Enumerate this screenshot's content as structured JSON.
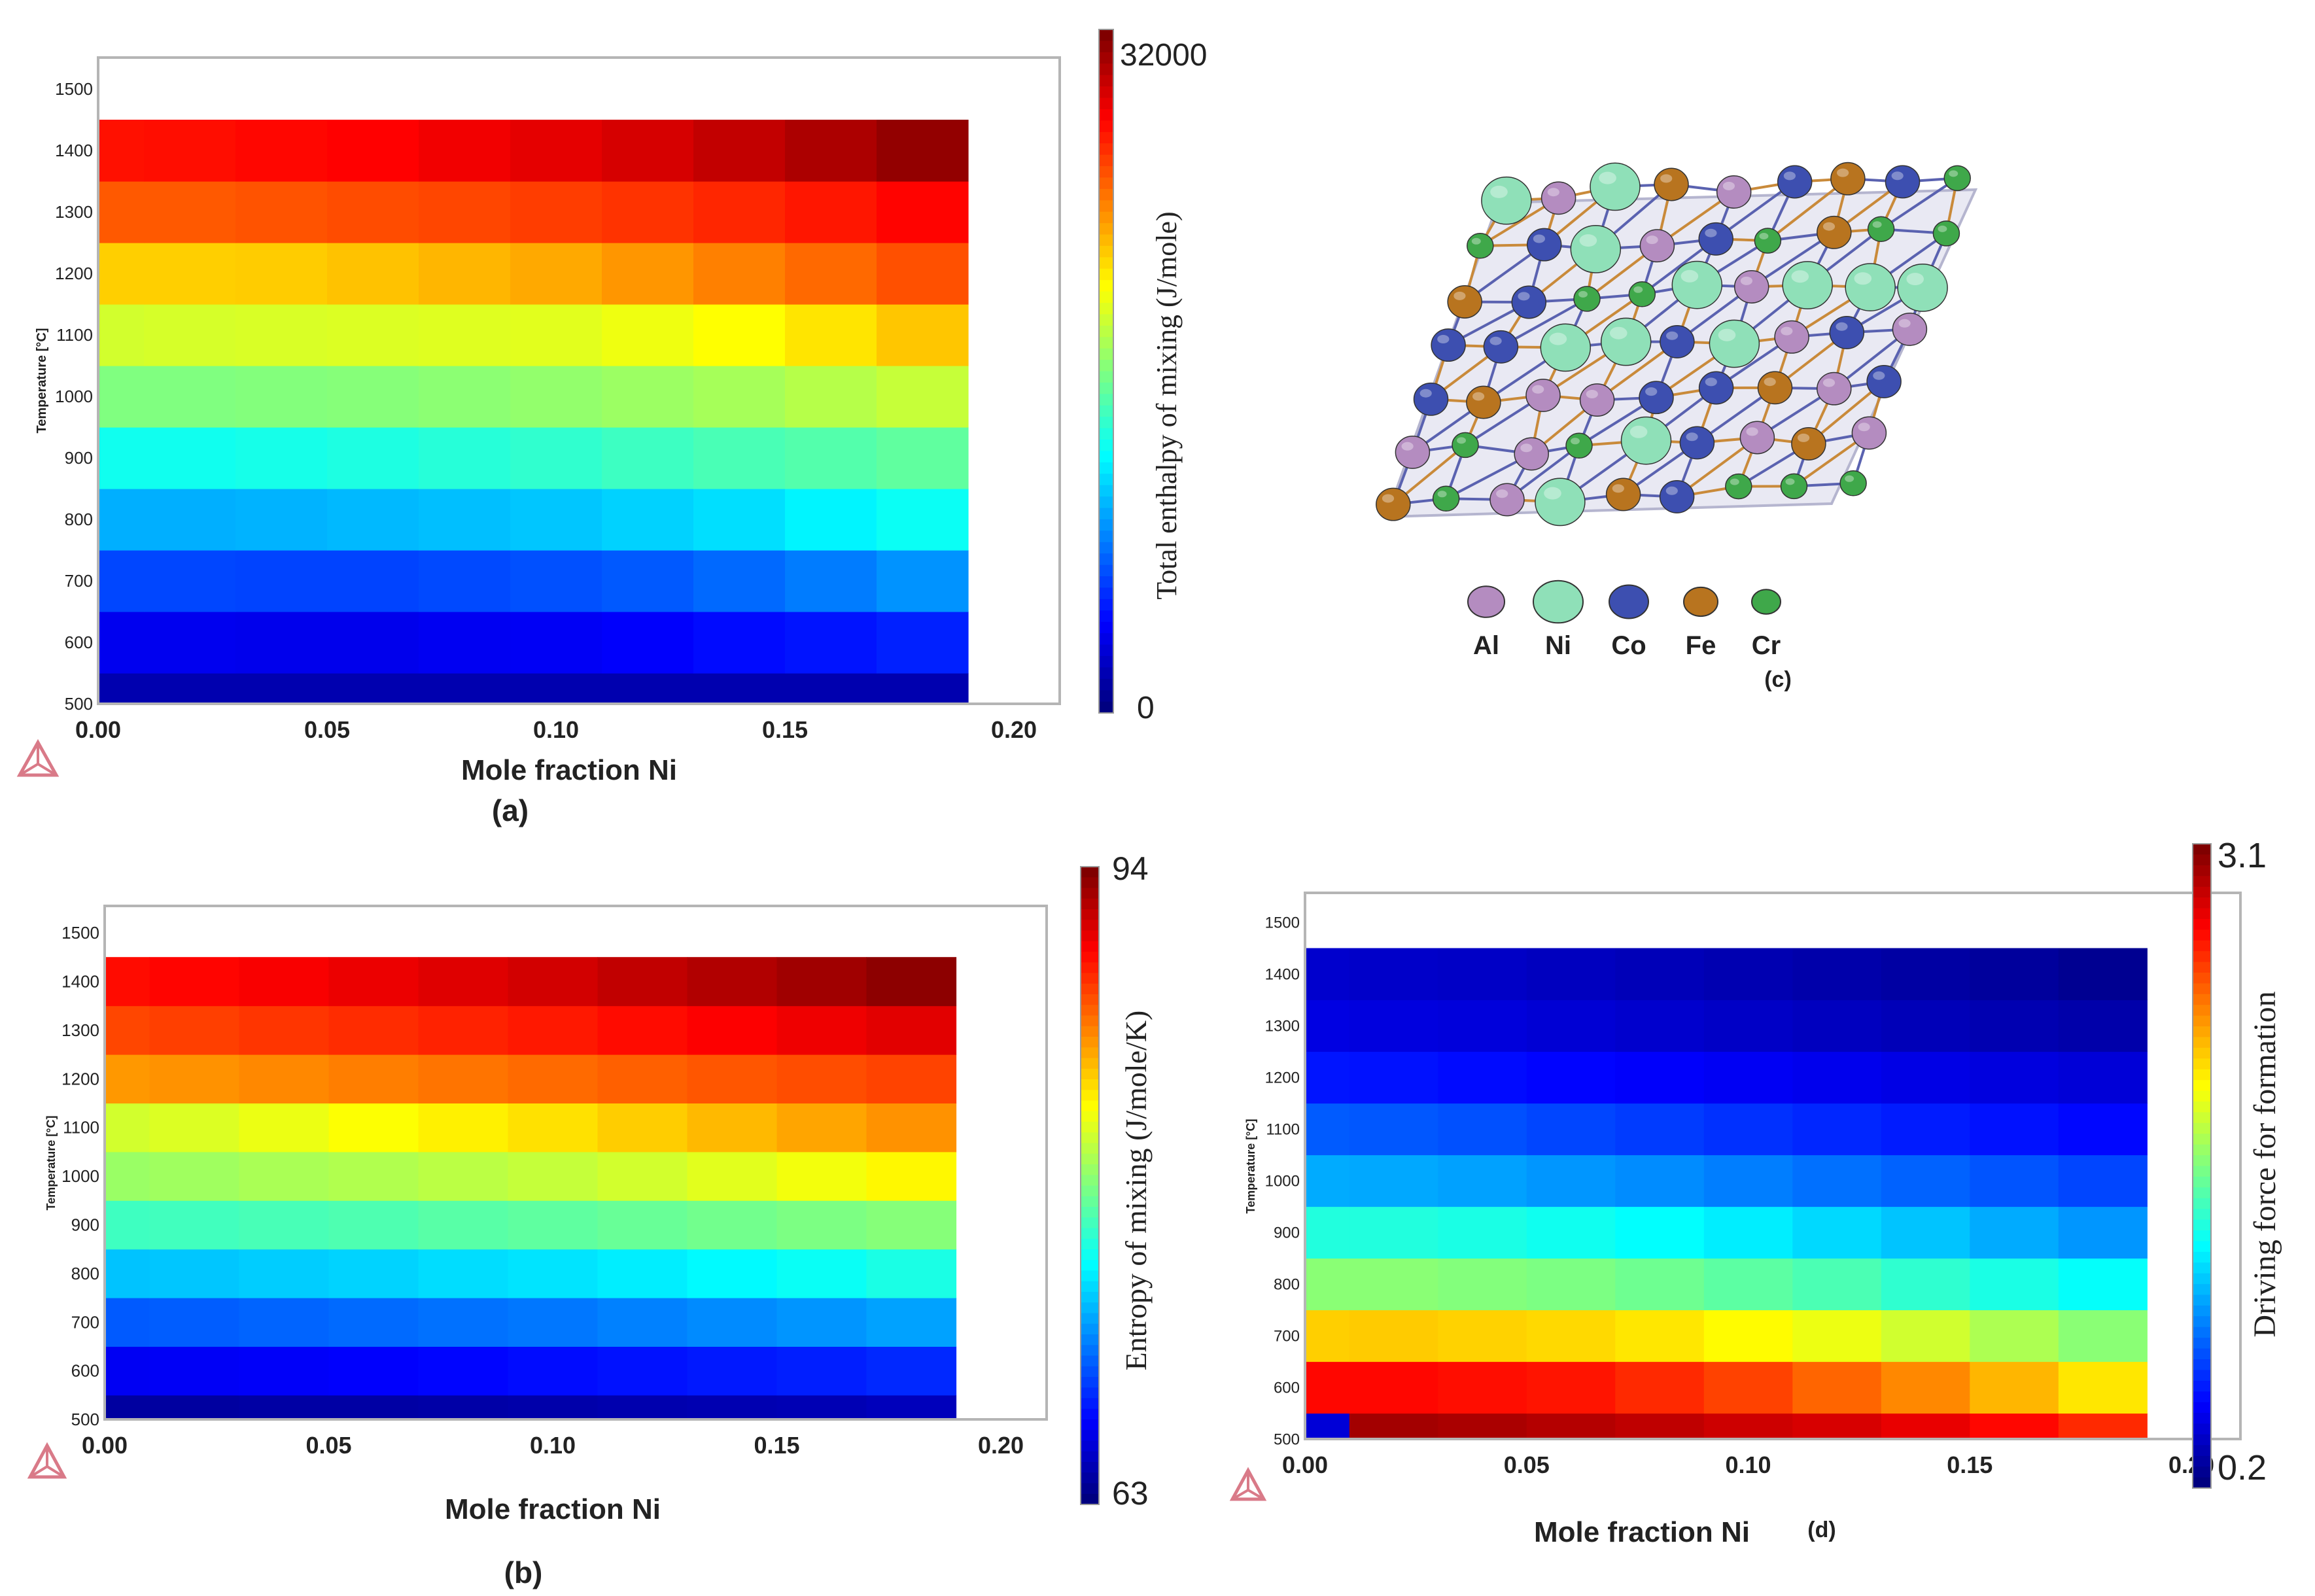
{
  "chart_data": [
    {
      "type": "heatmap",
      "panel_label": "(a)",
      "xlabel": "Mole fraction Ni",
      "ylabel": "Temperature [°C]",
      "x_ticks": [
        "0.00",
        "0.05",
        "0.10",
        "0.15",
        "0.20"
      ],
      "y_ticks": [
        "500",
        "600",
        "700",
        "800",
        "900",
        "1000",
        "1100",
        "1200",
        "1300",
        "1400",
        "1500"
      ],
      "xlim": [
        0,
        0.2
      ],
      "ylim": [
        500,
        1500
      ],
      "x_bin_centers": [
        0.0,
        0.02,
        0.04,
        0.06,
        0.08,
        0.1,
        0.12,
        0.14,
        0.16,
        0.18
      ],
      "y_bin_centers": [
        500,
        600,
        700,
        800,
        900,
        1000,
        1100,
        1200,
        1300,
        1400
      ],
      "colorbar_label": "Total enthalpy of mixing (J/mole)",
      "colorbar_min_label": "0",
      "colorbar_max_label": "32000",
      "range": [
        0,
        32000
      ],
      "values": [
        [
          1500,
          1500,
          1500,
          1500,
          1500,
          1500,
          1500,
          1500,
          1500,
          1500
        ],
        [
          3500,
          3500,
          3400,
          3400,
          3600,
          3700,
          3900,
          4300,
          4600,
          5000
        ],
        [
          6200,
          6200,
          6100,
          6100,
          6300,
          6500,
          6800,
          7300,
          7900,
          8600
        ],
        [
          9500,
          9500,
          9600,
          9800,
          10000,
          10200,
          10600,
          11000,
          11700,
          12300
        ],
        [
          12500,
          12500,
          12700,
          12900,
          13200,
          13500,
          13900,
          14300,
          14600,
          15000
        ],
        [
          16000,
          16000,
          16100,
          16200,
          16400,
          16600,
          16900,
          17200,
          17700,
          18200
        ],
        [
          18600,
          18700,
          18800,
          18900,
          19000,
          19100,
          19500,
          20000,
          20800,
          21800
        ],
        [
          21500,
          21500,
          21600,
          21900,
          22300,
          22700,
          23300,
          24000,
          24700,
          25500
        ],
        [
          25200,
          25200,
          25400,
          25600,
          25800,
          26100,
          26400,
          26800,
          27300,
          27900
        ],
        [
          27500,
          27600,
          27800,
          28000,
          28400,
          28800,
          29300,
          29900,
          30600,
          31400
        ]
      ]
    },
    {
      "type": "heatmap",
      "panel_label": "(b)",
      "xlabel": "Mole fraction Ni",
      "ylabel": "Temperature [°C]",
      "x_ticks": [
        "0.00",
        "0.05",
        "0.10",
        "0.15",
        "0.20"
      ],
      "y_ticks": [
        "500",
        "600",
        "700",
        "800",
        "900",
        "1000",
        "1100",
        "1200",
        "1300",
        "1400",
        "1500"
      ],
      "xlim": [
        0,
        0.2
      ],
      "ylim": [
        500,
        1500
      ],
      "x_bin_centers": [
        0.0,
        0.02,
        0.04,
        0.06,
        0.08,
        0.1,
        0.12,
        0.14,
        0.16,
        0.18
      ],
      "y_bin_centers": [
        500,
        600,
        700,
        800,
        900,
        1000,
        1100,
        1200,
        1300,
        1400
      ],
      "colorbar_label": "Entropy of mixing (J/mole/K)",
      "colorbar_min_label": "63",
      "colorbar_max_label": "94",
      "range": [
        63,
        94
      ],
      "values": [
        [
          64.0,
          64.0,
          64.1,
          64.1,
          64.2,
          64.3,
          64.4,
          64.5,
          64.6,
          64.8
        ],
        [
          66.5,
          66.6,
          66.7,
          66.8,
          67.0,
          67.2,
          67.4,
          67.6,
          67.8,
          68.1
        ],
        [
          69.6,
          69.7,
          69.9,
          70.1,
          70.3,
          70.5,
          70.8,
          71.1,
          71.4,
          71.8
        ],
        [
          72.8,
          72.9,
          73.1,
          73.3,
          73.6,
          73.8,
          74.1,
          74.5,
          74.9,
          75.4
        ],
        [
          76.5,
          76.6,
          76.8,
          77.0,
          77.3,
          77.5,
          77.8,
          78.1,
          78.4,
          78.7
        ],
        [
          79.3,
          79.5,
          79.8,
          80.0,
          80.3,
          80.6,
          81.0,
          81.5,
          82.0,
          82.6
        ],
        [
          81.0,
          81.3,
          81.8,
          82.3,
          82.8,
          83.3,
          83.9,
          84.5,
          85.1,
          85.7
        ],
        [
          85.5,
          85.7,
          86.0,
          86.3,
          86.6,
          86.9,
          87.2,
          87.5,
          87.8,
          88.1
        ],
        [
          88.0,
          88.2,
          88.5,
          88.8,
          89.1,
          89.4,
          89.8,
          90.2,
          90.6,
          91.0
        ],
        [
          89.8,
          90.0,
          90.3,
          90.7,
          91.1,
          91.5,
          92.0,
          92.5,
          93.0,
          93.6
        ]
      ]
    },
    {
      "type": "heatmap",
      "panel_label": "(d)",
      "xlabel": "Mole fraction Ni",
      "ylabel": "Temperature [°C]",
      "x_ticks": [
        "0.00",
        "0.05",
        "0.10",
        "0.15",
        "0.20"
      ],
      "y_ticks": [
        "500",
        "600",
        "700",
        "800",
        "900",
        "1000",
        "1100",
        "1200",
        "1300",
        "1400",
        "1500"
      ],
      "xlim": [
        0,
        0.2
      ],
      "ylim": [
        500,
        1500
      ],
      "x_bin_centers": [
        0.0,
        0.02,
        0.04,
        0.06,
        0.08,
        0.1,
        0.12,
        0.14,
        0.16,
        0.18
      ],
      "y_bin_centers": [
        500,
        600,
        700,
        800,
        900,
        1000,
        1100,
        1200,
        1300,
        1400
      ],
      "colorbar_label": "Driving force for formation",
      "colorbar_min_label": "0.2",
      "colorbar_max_label": "3.1",
      "range": [
        0.2,
        3.1
      ],
      "values": [
        [
          0.45,
          3.0,
          2.98,
          2.95,
          2.92,
          2.88,
          2.85,
          2.8,
          2.72,
          2.62
        ],
        [
          2.72,
          2.72,
          2.7,
          2.68,
          2.62,
          2.55,
          2.45,
          2.35,
          2.22,
          2.08
        ],
        [
          2.15,
          2.16,
          2.14,
          2.12,
          2.08,
          2.02,
          1.96,
          1.88,
          1.78,
          1.68
        ],
        [
          1.68,
          1.68,
          1.66,
          1.64,
          1.6,
          1.55,
          1.5,
          1.42,
          1.36,
          1.3
        ],
        [
          1.38,
          1.38,
          1.36,
          1.33,
          1.29,
          1.24,
          1.18,
          1.12,
          1.05,
          0.99
        ],
        [
          1.05,
          1.04,
          1.02,
          0.99,
          0.96,
          0.92,
          0.88,
          0.84,
          0.8,
          0.76
        ],
        [
          0.82,
          0.81,
          0.79,
          0.76,
          0.73,
          0.7,
          0.67,
          0.64,
          0.61,
          0.58
        ],
        [
          0.62,
          0.61,
          0.59,
          0.57,
          0.55,
          0.53,
          0.51,
          0.49,
          0.47,
          0.45
        ],
        [
          0.48,
          0.47,
          0.46,
          0.44,
          0.42,
          0.4,
          0.38,
          0.36,
          0.34,
          0.32
        ],
        [
          0.42,
          0.41,
          0.4,
          0.38,
          0.36,
          0.34,
          0.32,
          0.3,
          0.28,
          0.25
        ]
      ]
    }
  ],
  "panel_c": {
    "label": "(c)",
    "legend": [
      {
        "name": "Al",
        "color": "#b48cc0"
      },
      {
        "name": "Ni",
        "color": "#8fe0b8"
      },
      {
        "name": "Co",
        "color": "#3d4fb0"
      },
      {
        "name": "Fe",
        "color": "#b8741f"
      },
      {
        "name": "Cr",
        "color": "#3fa84a"
      }
    ]
  }
}
